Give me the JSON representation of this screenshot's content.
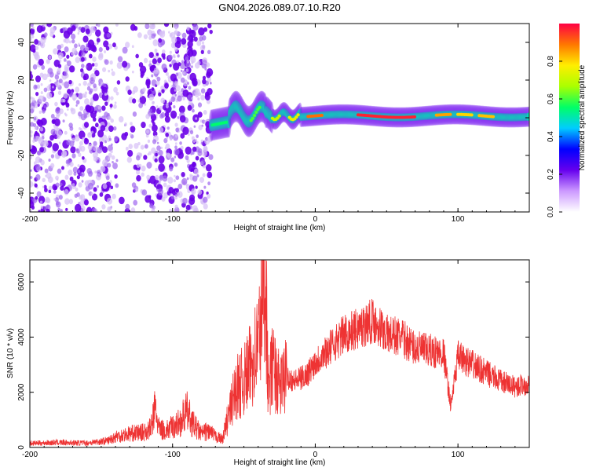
{
  "title": "GN04.2026.089.07.10.R20",
  "chart_data": [
    {
      "type": "heatmap",
      "title": "GN04.2026.089.07.10.R20",
      "xlabel": "Height of straight line (km)",
      "ylabel": "Frequency (Hz)",
      "xlim": [
        -200,
        150
      ],
      "ylim": [
        -50,
        50
      ],
      "xticks": [
        -200,
        -100,
        0,
        100
      ],
      "yticks": [
        -40,
        -20,
        0,
        20,
        40
      ],
      "x_tick_labels": [
        "-200",
        "-100",
        "0",
        "100"
      ],
      "y_tick_labels": [
        "-40",
        "-20",
        "0",
        "20",
        "40"
      ],
      "colorbar": {
        "label": "Normalized spectral amplitude",
        "range": [
          0.0,
          1.0
        ],
        "ticks": [
          0.0,
          0.2,
          0.4,
          0.6,
          0.8
        ],
        "tick_labels": [
          "0.0",
          "0.2",
          "0.4",
          "0.6",
          "0.8"
        ],
        "colormap": [
          "#ffffff",
          "#cc99ff",
          "#6600ee",
          "#0000ff",
          "#00ccff",
          "#00ff66",
          "#aaff00",
          "#ffee00",
          "#ff7700",
          "#ff0044"
        ]
      },
      "regions": [
        {
          "name": "scattered noise",
          "x_range": [
            -200,
            -73
          ],
          "y_range": [
            -50,
            50
          ],
          "amplitude": 0.15
        },
        {
          "name": "signal band",
          "x_range": [
            -73,
            150
          ],
          "frequency_center_hz": 1,
          "band_width_hz": 4,
          "amplitude_peak": 0.95
        }
      ]
    },
    {
      "type": "line",
      "title": "",
      "xlabel": "Height of straight line (km)",
      "ylabel": "SNR (10 * v/v)",
      "xlim": [
        -200,
        150
      ],
      "ylim": [
        0,
        6800
      ],
      "xticks": [
        -200,
        -100,
        0,
        100
      ],
      "yticks": [
        0,
        2000,
        4000,
        6000
      ],
      "x_tick_labels": [
        "-200",
        "-100",
        "0",
        "100"
      ],
      "y_tick_labels": [
        "0",
        "2000",
        "4000",
        "6000"
      ],
      "color": "#ee3333",
      "series": [
        {
          "name": "SNR",
          "x": [
            -200,
            -180,
            -160,
            -145,
            -140,
            -130,
            -120,
            -115,
            -112,
            -110,
            -105,
            -95,
            -90,
            -85,
            -80,
            -75,
            -70,
            -65,
            -62,
            -58,
            -55,
            -50,
            -45,
            -40,
            -37,
            -35,
            -33,
            -30,
            -25,
            -20,
            -15,
            -10,
            -5,
            0,
            10,
            20,
            30,
            40,
            45,
            50,
            60,
            70,
            80,
            90,
            95,
            100,
            110,
            120,
            130,
            140,
            150
          ],
          "y": [
            150,
            180,
            160,
            250,
            400,
            500,
            550,
            700,
            1500,
            700,
            600,
            900,
            1300,
            800,
            500,
            600,
            400,
            300,
            900,
            1700,
            2200,
            2400,
            3000,
            3800,
            5200,
            6800,
            2000,
            3000,
            2200,
            2600,
            2400,
            2500,
            2700,
            3100,
            3600,
            4100,
            4300,
            4600,
            4400,
            4100,
            4000,
            3600,
            3500,
            3400,
            1500,
            3300,
            3000,
            2700,
            2400,
            2200,
            2300
          ]
        }
      ]
    }
  ]
}
